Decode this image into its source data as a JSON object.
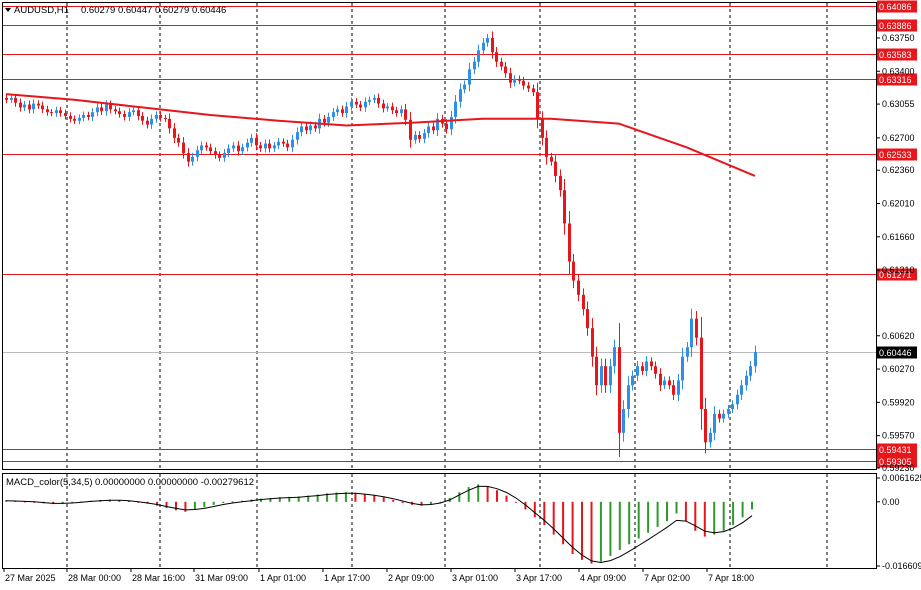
{
  "header": {
    "symbol": "AUDUSD,H1",
    "ohlc": "0.60279 0.60447 0.60279 0.60446"
  },
  "macd_header": {
    "name": "MACD_color(5,34,5)",
    "values": "0.00000000 0.00000000 -0.00279612"
  },
  "colors": {
    "bull": "#2f8fe8",
    "bear": "#e8151b",
    "ma": "#e8151b",
    "level": "#e8151b",
    "macd_up": "#2e9a2e",
    "macd_down": "#e8151b",
    "signal": "#000000",
    "grid": "#000000",
    "current": "#000000"
  },
  "chart_data": [
    {
      "type": "candlestick",
      "title": "AUDUSD,H1",
      "ylim": [
        0.5923,
        0.64086
      ],
      "y_ticks": [
        "0.63750",
        "0.63400",
        "0.63055",
        "0.62700",
        "0.62360",
        "0.62010",
        "0.61660",
        "0.61310",
        "0.60620",
        "0.60270",
        "0.59920",
        "0.59570",
        "0.59230"
      ],
      "x_labels": [
        "27 Mar 2025",
        "28 Mar 00:00",
        "28 Mar 16:00",
        "31 Mar 09:00",
        "1 Apr 01:00",
        "1 Apr 17:00",
        "2 Apr 09:00",
        "3 Apr 01:00",
        "3 Apr 17:00",
        "4 Apr 09:00",
        "7 Apr 02:00",
        "7 Apr 18:00"
      ],
      "levels": [
        "0.64086",
        "0.63886",
        "0.63583",
        "0.63316",
        "0.62533",
        "0.61271",
        "0.59431",
        "0.59305"
      ],
      "current_price": "0.60446",
      "ma_period_note": "",
      "ma_values": [
        0.6316,
        0.631,
        0.6302,
        0.6294,
        0.6288,
        0.6283,
        0.6286,
        0.629,
        0.629,
        0.6285,
        0.626,
        0.623
      ],
      "closes": [
        0.631,
        0.6312,
        0.6307,
        0.6302,
        0.6305,
        0.63,
        0.6306,
        0.6304,
        0.63,
        0.6297,
        0.6296,
        0.6299,
        0.6296,
        0.6293,
        0.629,
        0.6288,
        0.6291,
        0.6294,
        0.6292,
        0.6297,
        0.6302,
        0.6298,
        0.6305,
        0.63,
        0.6298,
        0.6295,
        0.6292,
        0.6297,
        0.6299,
        0.6293,
        0.6288,
        0.6284,
        0.629,
        0.6294,
        0.6291,
        0.629,
        0.628,
        0.627,
        0.6265,
        0.6254,
        0.6245,
        0.625,
        0.6257,
        0.6262,
        0.626,
        0.6256,
        0.6252,
        0.6249,
        0.6254,
        0.6259,
        0.6262,
        0.6256,
        0.626,
        0.6265,
        0.627,
        0.6262,
        0.6259,
        0.6264,
        0.6259,
        0.6262,
        0.6266,
        0.6264,
        0.626,
        0.6268,
        0.6276,
        0.6282,
        0.6278,
        0.6283,
        0.628,
        0.629,
        0.6286,
        0.6292,
        0.6297,
        0.63,
        0.6296,
        0.6303,
        0.6308,
        0.6305,
        0.6302,
        0.6308,
        0.631,
        0.6312,
        0.6306,
        0.6301,
        0.6303,
        0.6299,
        0.6296,
        0.63,
        0.6289,
        0.6268,
        0.6273,
        0.6269,
        0.6275,
        0.6282,
        0.6278,
        0.629,
        0.6285,
        0.6279,
        0.6292,
        0.6308,
        0.6321,
        0.6326,
        0.6342,
        0.635,
        0.6362,
        0.637,
        0.6375,
        0.636,
        0.635,
        0.6345,
        0.6338,
        0.6328,
        0.6332,
        0.633,
        0.6325,
        0.6322,
        0.6318,
        0.629,
        0.627,
        0.625,
        0.6245,
        0.623,
        0.6215,
        0.618,
        0.614,
        0.612,
        0.6105,
        0.609,
        0.607,
        0.604,
        0.601,
        0.603,
        0.601,
        0.603,
        0.605,
        0.596,
        0.5985,
        0.601,
        0.602,
        0.603,
        0.6025,
        0.6035,
        0.603,
        0.6022,
        0.601,
        0.6015,
        0.601,
        0.6,
        0.6015,
        0.604,
        0.605,
        0.608,
        0.606,
        0.5985,
        0.595,
        0.596,
        0.598,
        0.5975,
        0.598,
        0.5985,
        0.599,
        0.6,
        0.601,
        0.602,
        0.603,
        0.6045
      ]
    },
    {
      "type": "bar",
      "title": "MACD_color(5,34,5)",
      "ylim": [
        -0.016609,
        0.0061625
      ],
      "y_ticks": [
        "0.0061625",
        "0.00",
        "-0.016609"
      ],
      "series": [
        {
          "name": "",
          "values": [
            0.0004,
            0.0002,
            0.0001,
            -0.0002,
            -0.0004,
            -0.0006,
            -0.0004,
            -0.0002,
            0.0001,
            0.0003,
            0.0005,
            0.0006,
            0.0004,
            0.0002,
            -0.0002,
            -0.0005,
            -0.001,
            -0.0016,
            -0.0022,
            -0.0026,
            -0.002,
            -0.0014,
            -0.0008,
            -0.0003,
            0.0001,
            0.0003,
            0.0006,
            0.0008,
            0.001,
            0.0012,
            0.0013,
            0.0014,
            0.0016,
            0.0019,
            0.0022,
            0.0024,
            0.0025,
            0.0023,
            0.002,
            0.0016,
            0.0012,
            0.0005,
            -0.0003,
            -0.0008,
            -0.001,
            -0.0006,
            0.0,
            0.001,
            0.0025,
            0.0038,
            0.0045,
            0.004,
            0.003,
            0.0016,
            0.0,
            -0.002,
            -0.004,
            -0.006,
            -0.0085,
            -0.011,
            -0.0135,
            -0.015,
            -0.016,
            -0.0155,
            -0.014,
            -0.0125,
            -0.011,
            -0.0095,
            -0.008,
            -0.0065,
            -0.005,
            -0.003,
            -0.005,
            -0.0075,
            -0.009,
            -0.0085,
            -0.0075,
            -0.006,
            -0.004,
            -0.002
          ]
        },
        {
          "name": "",
          "values": [
            0.0003,
            0.0002,
            0.0001,
            0.0,
            -0.0002,
            -0.0004,
            -0.0004,
            -0.0003,
            -0.0001,
            0.0001,
            0.0003,
            0.0004,
            0.0004,
            0.0003,
            0.0,
            -0.0003,
            -0.0007,
            -0.0012,
            -0.0017,
            -0.0021,
            -0.002,
            -0.0017,
            -0.0012,
            -0.0007,
            -0.0003,
            0.0,
            0.0003,
            0.0006,
            0.0008,
            0.001,
            0.0011,
            0.0012,
            0.0014,
            0.0016,
            0.0019,
            0.0021,
            0.0022,
            0.0022,
            0.002,
            0.0017,
            0.0013,
            0.0008,
            0.0002,
            -0.0004,
            -0.0008,
            -0.0007,
            -0.0003,
            0.0005,
            0.0018,
            0.003,
            0.004,
            0.004,
            0.0034,
            0.0024,
            0.001,
            -0.0008,
            -0.0028,
            -0.0048,
            -0.007,
            -0.0094,
            -0.0118,
            -0.0138,
            -0.0153,
            -0.0157,
            -0.0152,
            -0.0142,
            -0.0128,
            -0.0113,
            -0.0098,
            -0.0082,
            -0.0066,
            -0.0048,
            -0.005,
            -0.0062,
            -0.0076,
            -0.008,
            -0.0077,
            -0.0068,
            -0.0054,
            -0.0036
          ]
        }
      ]
    }
  ]
}
